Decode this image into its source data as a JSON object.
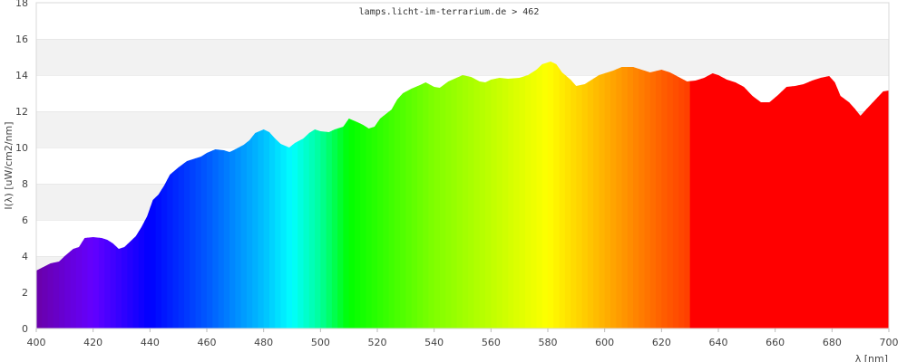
{
  "chart_data": {
    "type": "area",
    "title": "lamps.licht-im-terrarium.de > 462",
    "xlabel": "λ [nm]",
    "ylabel": "I(λ)  [uW/cm2/nm]",
    "xlim": [
      400,
      700
    ],
    "ylim": [
      0,
      18
    ],
    "xticks": [
      400,
      420,
      440,
      460,
      480,
      500,
      520,
      540,
      560,
      580,
      600,
      620,
      640,
      660,
      680,
      700
    ],
    "yticks": [
      0,
      2,
      4,
      6,
      8,
      10,
      12,
      14,
      16,
      18
    ],
    "grid": "alternating horizontal bands",
    "fill": "spectral colors by wavelength",
    "color_stops": [
      [
        400,
        "#6a00a8"
      ],
      [
        420,
        "#6400ff"
      ],
      [
        440,
        "#0000ff"
      ],
      [
        460,
        "#0058ff"
      ],
      [
        480,
        "#00c0ff"
      ],
      [
        490,
        "#00ffff"
      ],
      [
        500,
        "#00ff99"
      ],
      [
        510,
        "#00ff00"
      ],
      [
        540,
        "#80ff00"
      ],
      [
        580,
        "#ffff00"
      ],
      [
        600,
        "#ffb000"
      ],
      [
        620,
        "#ff6000"
      ],
      [
        629,
        "#ff4000"
      ],
      [
        630,
        "#ff0000"
      ],
      [
        700,
        "#ff0000"
      ]
    ],
    "x": [
      400,
      405,
      408,
      410,
      413,
      415,
      417,
      420,
      423,
      425,
      427,
      429,
      431,
      433,
      435,
      437,
      439,
      441,
      443,
      445,
      447,
      450,
      453,
      455,
      458,
      460,
      463,
      466,
      468,
      470,
      473,
      475,
      477,
      480,
      482,
      484,
      486,
      489,
      491,
      494,
      496,
      498,
      500,
      503,
      505,
      508,
      510,
      513,
      515,
      517,
      519,
      521,
      523,
      525,
      527,
      529,
      532,
      535,
      537,
      540,
      542,
      545,
      550,
      553,
      556,
      558,
      560,
      563,
      566,
      570,
      573,
      576,
      578,
      581,
      583,
      585,
      588,
      590,
      593,
      596,
      598,
      600,
      603,
      606,
      610,
      613,
      616,
      620,
      623,
      626,
      629,
      632,
      635,
      638,
      640,
      643,
      646,
      649,
      652,
      655,
      658,
      661,
      664,
      667,
      670,
      673,
      676,
      679,
      681,
      683,
      686,
      688,
      690,
      692,
      695,
      698,
      700
    ],
    "y": [
      3.2,
      3.6,
      3.7,
      4.0,
      4.4,
      4.5,
      5.0,
      5.05,
      5.0,
      4.9,
      4.7,
      4.4,
      4.5,
      4.8,
      5.1,
      5.6,
      6.2,
      7.1,
      7.4,
      7.9,
      8.5,
      8.9,
      9.25,
      9.35,
      9.5,
      9.7,
      9.9,
      9.85,
      9.75,
      9.9,
      10.15,
      10.4,
      10.8,
      11.0,
      10.85,
      10.5,
      10.2,
      10.0,
      10.25,
      10.5,
      10.8,
      11.0,
      10.9,
      10.85,
      11.0,
      11.15,
      11.6,
      11.4,
      11.25,
      11.05,
      11.15,
      11.6,
      11.85,
      12.1,
      12.65,
      13.0,
      13.25,
      13.45,
      13.6,
      13.35,
      13.3,
      13.65,
      14.0,
      13.9,
      13.65,
      13.6,
      13.75,
      13.85,
      13.8,
      13.85,
      14.0,
      14.3,
      14.6,
      14.75,
      14.6,
      14.15,
      13.75,
      13.4,
      13.5,
      13.8,
      14.0,
      14.1,
      14.25,
      14.45,
      14.45,
      14.3,
      14.15,
      14.3,
      14.15,
      13.9,
      13.65,
      13.7,
      13.85,
      14.1,
      14.0,
      13.75,
      13.6,
      13.35,
      12.85,
      12.5,
      12.5,
      12.9,
      13.35,
      13.4,
      13.5,
      13.7,
      13.85,
      13.95,
      13.6,
      12.85,
      12.5,
      12.15,
      11.75,
      12.1,
      12.6,
      13.1,
      13.15
    ]
  }
}
